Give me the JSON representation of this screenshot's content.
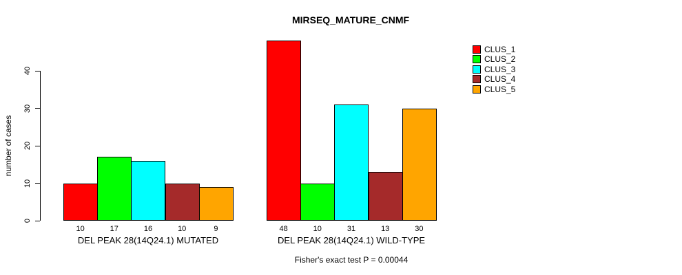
{
  "title": "MIRSEQ_MATURE_CNMF",
  "chart_data": {
    "type": "bar",
    "title": "MIRSEQ_MATURE_CNMF",
    "xlabel": "",
    "ylabel": "number of cases",
    "ylim": [
      0,
      40
    ],
    "yticks": [
      "0",
      "10",
      "20",
      "30",
      "40"
    ],
    "grid": false,
    "legend_position": "top-right",
    "series": [
      {
        "name": "CLUS_1",
        "color": "#FF0000"
      },
      {
        "name": "CLUS_2",
        "color": "#00FF00"
      },
      {
        "name": "CLUS_3",
        "color": "#00FFFF"
      },
      {
        "name": "CLUS_4",
        "color": "#A52A2A"
      },
      {
        "name": "CLUS_5",
        "color": "#FFA500"
      }
    ],
    "groups": [
      {
        "label": "DEL PEAK 28(14Q24.1) MUTATED",
        "values": [
          10,
          17,
          16,
          10,
          9
        ],
        "value_labels": [
          "10",
          "17",
          "16",
          "10",
          "9"
        ]
      },
      {
        "label": "DEL PEAK 28(14Q24.1) WILD-TYPE",
        "values": [
          48,
          10,
          31,
          13,
          30
        ],
        "value_labels": [
          "48",
          "10",
          "31",
          "13",
          "30"
        ]
      }
    ],
    "annotation": "Fisher's exact test P = 0.00044"
  }
}
